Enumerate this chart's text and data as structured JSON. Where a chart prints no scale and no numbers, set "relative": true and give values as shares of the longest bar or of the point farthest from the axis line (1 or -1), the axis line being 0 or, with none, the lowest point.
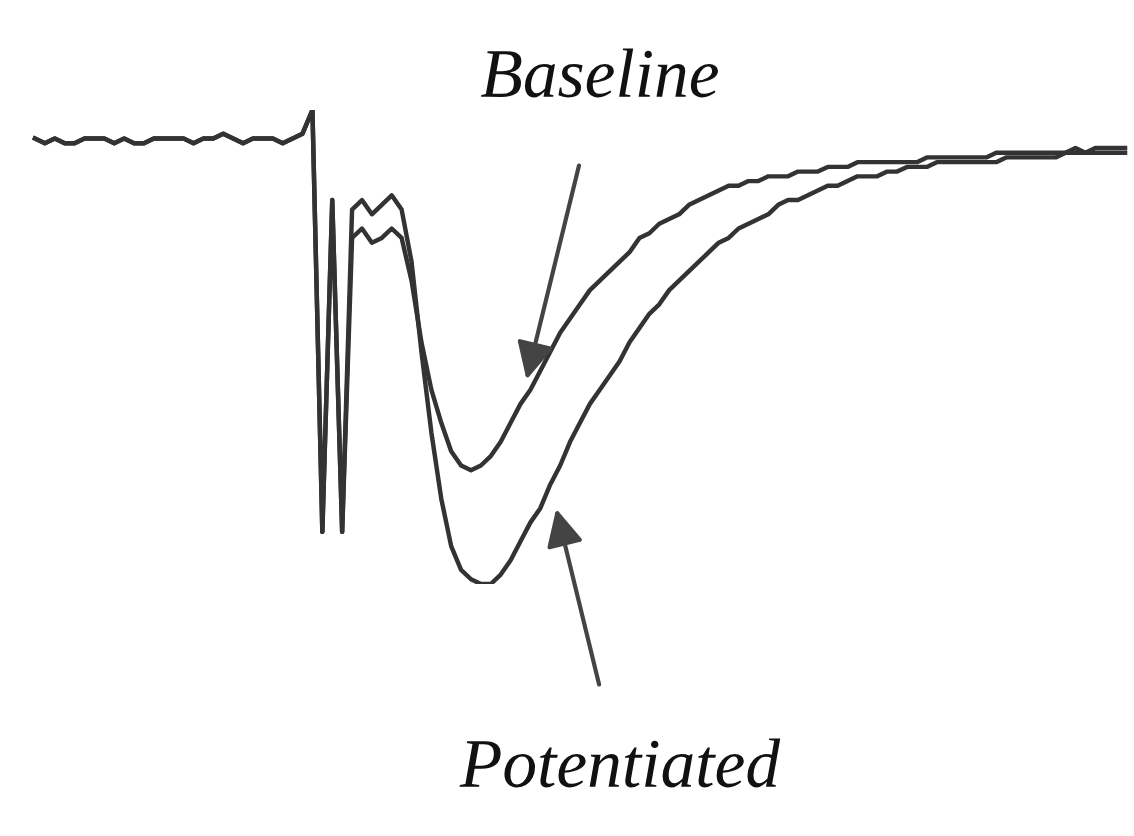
{
  "chart_data": {
    "type": "line",
    "relative": true,
    "categories": [
      null,
      null,
      null,
      null,
      null,
      null,
      null,
      null,
      null,
      null,
      null,
      null,
      null,
      null,
      null,
      null,
      null,
      null,
      null,
      null,
      null,
      null,
      null,
      null,
      null,
      null,
      null,
      null,
      null,
      null,
      null,
      null,
      null,
      null,
      null,
      null,
      null,
      null,
      null,
      null,
      null,
      null,
      null,
      null,
      null,
      null,
      null,
      null,
      null,
      null,
      null,
      null,
      null,
      null,
      null,
      null,
      null,
      null,
      null,
      null,
      null,
      null,
      null,
      null,
      null,
      null,
      null,
      null,
      null,
      null,
      null,
      null,
      null,
      null,
      null,
      null,
      null,
      null,
      null,
      null,
      null,
      null,
      null,
      null,
      null,
      null,
      null,
      null,
      null,
      null,
      null,
      null,
      null,
      null,
      null,
      null,
      null,
      null,
      null,
      null,
      null,
      null,
      null,
      null,
      null,
      null,
      null,
      null,
      null,
      null,
      null
    ],
    "legend": false,
    "marker": "none",
    "line_style": "solid",
    "series": [
      {
        "name": "Baseline",
        "color": "#333333",
        "values": [
          0.94,
          0.93,
          0.94,
          0.93,
          0.93,
          0.94,
          0.94,
          0.94,
          0.93,
          0.94,
          0.93,
          0.93,
          0.94,
          0.94,
          0.94,
          0.94,
          0.93,
          0.94,
          0.94,
          0.95,
          0.94,
          0.93,
          0.94,
          0.94,
          0.94,
          0.93,
          0.94,
          0.95,
          1,
          0.11,
          0.81,
          0.11,
          0.73,
          0.75,
          0.72,
          0.73,
          0.75,
          0.73,
          0.64,
          0.51,
          0.41,
          0.34,
          0.28,
          0.25,
          0.24,
          0.25,
          0.27,
          0.3,
          0.34,
          0.38,
          0.41,
          0.45,
          0.49,
          0.53,
          0.56,
          0.59,
          0.62,
          0.64,
          0.66,
          0.68,
          0.7,
          0.73,
          0.74,
          0.76,
          0.77,
          0.78,
          0.8,
          0.81,
          0.82,
          0.83,
          0.84,
          0.84,
          0.85,
          0.85,
          0.86,
          0.86,
          0.86,
          0.87,
          0.87,
          0.87,
          0.88,
          0.88,
          0.88,
          0.89,
          0.89,
          0.89,
          0.89,
          0.89,
          0.89,
          0.89,
          0.9,
          0.9,
          0.9,
          0.9,
          0.9,
          0.9,
          0.9,
          0.91,
          0.91,
          0.91,
          0.91,
          0.91,
          0.91,
          0.91,
          0.91,
          0.92,
          0.91,
          0.92,
          0.92,
          0.92,
          0.92
        ]
      },
      {
        "name": "Potentiated",
        "color": "#333333",
        "values": [
          0.94,
          0.93,
          0.94,
          0.93,
          0.93,
          0.94,
          0.94,
          0.94,
          0.93,
          0.94,
          0.93,
          0.93,
          0.94,
          0.94,
          0.94,
          0.94,
          0.93,
          0.94,
          0.94,
          0.95,
          0.94,
          0.93,
          0.94,
          0.94,
          0.94,
          0.93,
          0.94,
          0.95,
          1,
          0.11,
          0.81,
          0.11,
          0.79,
          0.81,
          0.78,
          0.8,
          0.82,
          0.79,
          0.68,
          0.49,
          0.32,
          0.18,
          0.08,
          0.03,
          0.01,
          0,
          0.0,
          0.02,
          0.05,
          0.09,
          0.13,
          0.16,
          0.21,
          0.25,
          0.3,
          0.34,
          0.38,
          0.41,
          0.44,
          0.47,
          0.51,
          0.54,
          0.57,
          0.59,
          0.62,
          0.64,
          0.66,
          0.68,
          0.7,
          0.72,
          0.73,
          0.75,
          0.76,
          0.77,
          0.78,
          0.8,
          0.81,
          0.81,
          0.82,
          0.83,
          0.84,
          0.84,
          0.85,
          0.86,
          0.86,
          0.86,
          0.87,
          0.87,
          0.88,
          0.88,
          0.88,
          0.89,
          0.89,
          0.89,
          0.89,
          0.89,
          0.89,
          0.89,
          0.9,
          0.9,
          0.9,
          0.9,
          0.9,
          0.9,
          0.91,
          0.91,
          0.91,
          0.91,
          0.91,
          0.91,
          0.91
        ]
      }
    ]
  }
}
